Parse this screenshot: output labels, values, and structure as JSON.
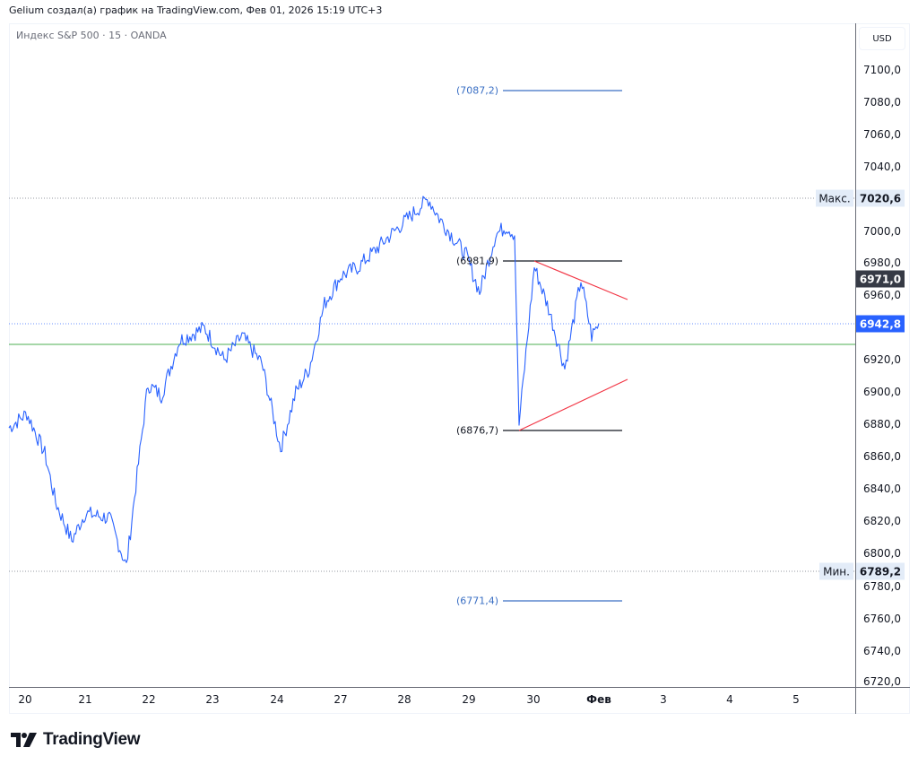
{
  "header": {
    "attribution": "Gelium создал(а) график на TradingView.com, Фев 01, 2026 15:19 UTC+3",
    "legend": "Индекс S&P 500 · 15 · OANDA"
  },
  "price_axis": {
    "currency": "USD",
    "ticks": [
      "7100,0",
      "7080,0",
      "7060,0",
      "7040,0",
      "7000,0",
      "6980,0",
      "6960,0",
      "6920,0",
      "6900,0",
      "6880,0",
      "6860,0",
      "6840,0",
      "6820,0",
      "6800,0",
      "6780,0",
      "6760,0",
      "6740,0",
      "6720,0"
    ],
    "max_label": "Макс.",
    "max_value": "7020,6",
    "min_label": "Мин.",
    "min_value": "6789,2",
    "cursor_value": "6971,0",
    "last_price": "6942,8"
  },
  "time_axis": {
    "ticks": [
      "20",
      "21",
      "22",
      "23",
      "24",
      "27",
      "28",
      "29",
      "30",
      "Фев",
      "3",
      "4",
      "5"
    ]
  },
  "drawings": {
    "target_up_label": "(7087,2)",
    "resistance_label": "(6981,9)",
    "support_label": "(6876,7)",
    "target_down_label": "(6771,4)"
  },
  "colors": {
    "price_line": "#2962ff",
    "last_price_bg": "#2962ff",
    "cursor_tag_bg": "#363a45",
    "triangle": "#f23645",
    "support_resistance": "#131722",
    "target_lines": "#3a6fc4",
    "horizontal_green": "#4caf50",
    "max_min_bg": "#e3ecf8"
  },
  "logo": {
    "text": "TradingView"
  },
  "chart_data": {
    "type": "line",
    "title": "Индекс S&P 500 · 15 · OANDA",
    "xlabel": "",
    "ylabel": "USD",
    "ylim": [
      6720,
      7105
    ],
    "grid": false,
    "x_ticks": [
      "20",
      "21",
      "22",
      "23",
      "24",
      "27",
      "28",
      "29",
      "30",
      "Фев",
      "3",
      "4",
      "5"
    ],
    "series": [
      {
        "name": "S&P 500 (15m)",
        "x": [
          "20",
          "20",
          "20.5",
          "20.8",
          "21",
          "21.3",
          "21.6",
          "21.8",
          "22",
          "22.1",
          "22.3",
          "22.6",
          "23",
          "23.3",
          "23.6",
          "24",
          "24.1",
          "24.4",
          "24.6",
          "27",
          "27.3",
          "27.6",
          "28",
          "28.3",
          "28.6",
          "29",
          "29.2",
          "29.4",
          "29.6",
          "29.8",
          "30",
          "30.2",
          "30.4",
          "30.6",
          "30.8",
          "Фев",
          "Фев+"
        ],
        "values": [
          6878,
          6887,
          6862,
          6832,
          6808,
          6825,
          6822,
          6792,
          6835,
          6905,
          6898,
          6932,
          6940,
          6920,
          6935,
          6918,
          6865,
          6900,
          6915,
          6955,
          6972,
          6978,
          7000,
          7020,
          7008,
          6985,
          6962,
          6998,
          7003,
          6998,
          6880,
          6978,
          6952,
          6915,
          6970,
          6935,
          6942.8
        ]
      }
    ],
    "annotations": {
      "max": 7020.6,
      "min": 6789.2,
      "last_price": 6942.8,
      "cursor_price": 6971.0,
      "horizontal_levels": [
        {
          "label": "(7087,2)",
          "value": 7087.2
        },
        {
          "label": "(6981,9)",
          "value": 6981.9
        },
        {
          "label": "(6876,7)",
          "value": 6876.7
        },
        {
          "label": "(6771,4)",
          "value": 6771.4
        }
      ],
      "green_horizontal": 6930,
      "triangle": {
        "upper": [
          [
            6981.9,
            "30"
          ],
          [
            6958,
            "Фев"
          ]
        ],
        "lower": [
          [
            6876.7,
            "30"
          ],
          [
            6908,
            "Фев"
          ]
        ]
      }
    }
  }
}
